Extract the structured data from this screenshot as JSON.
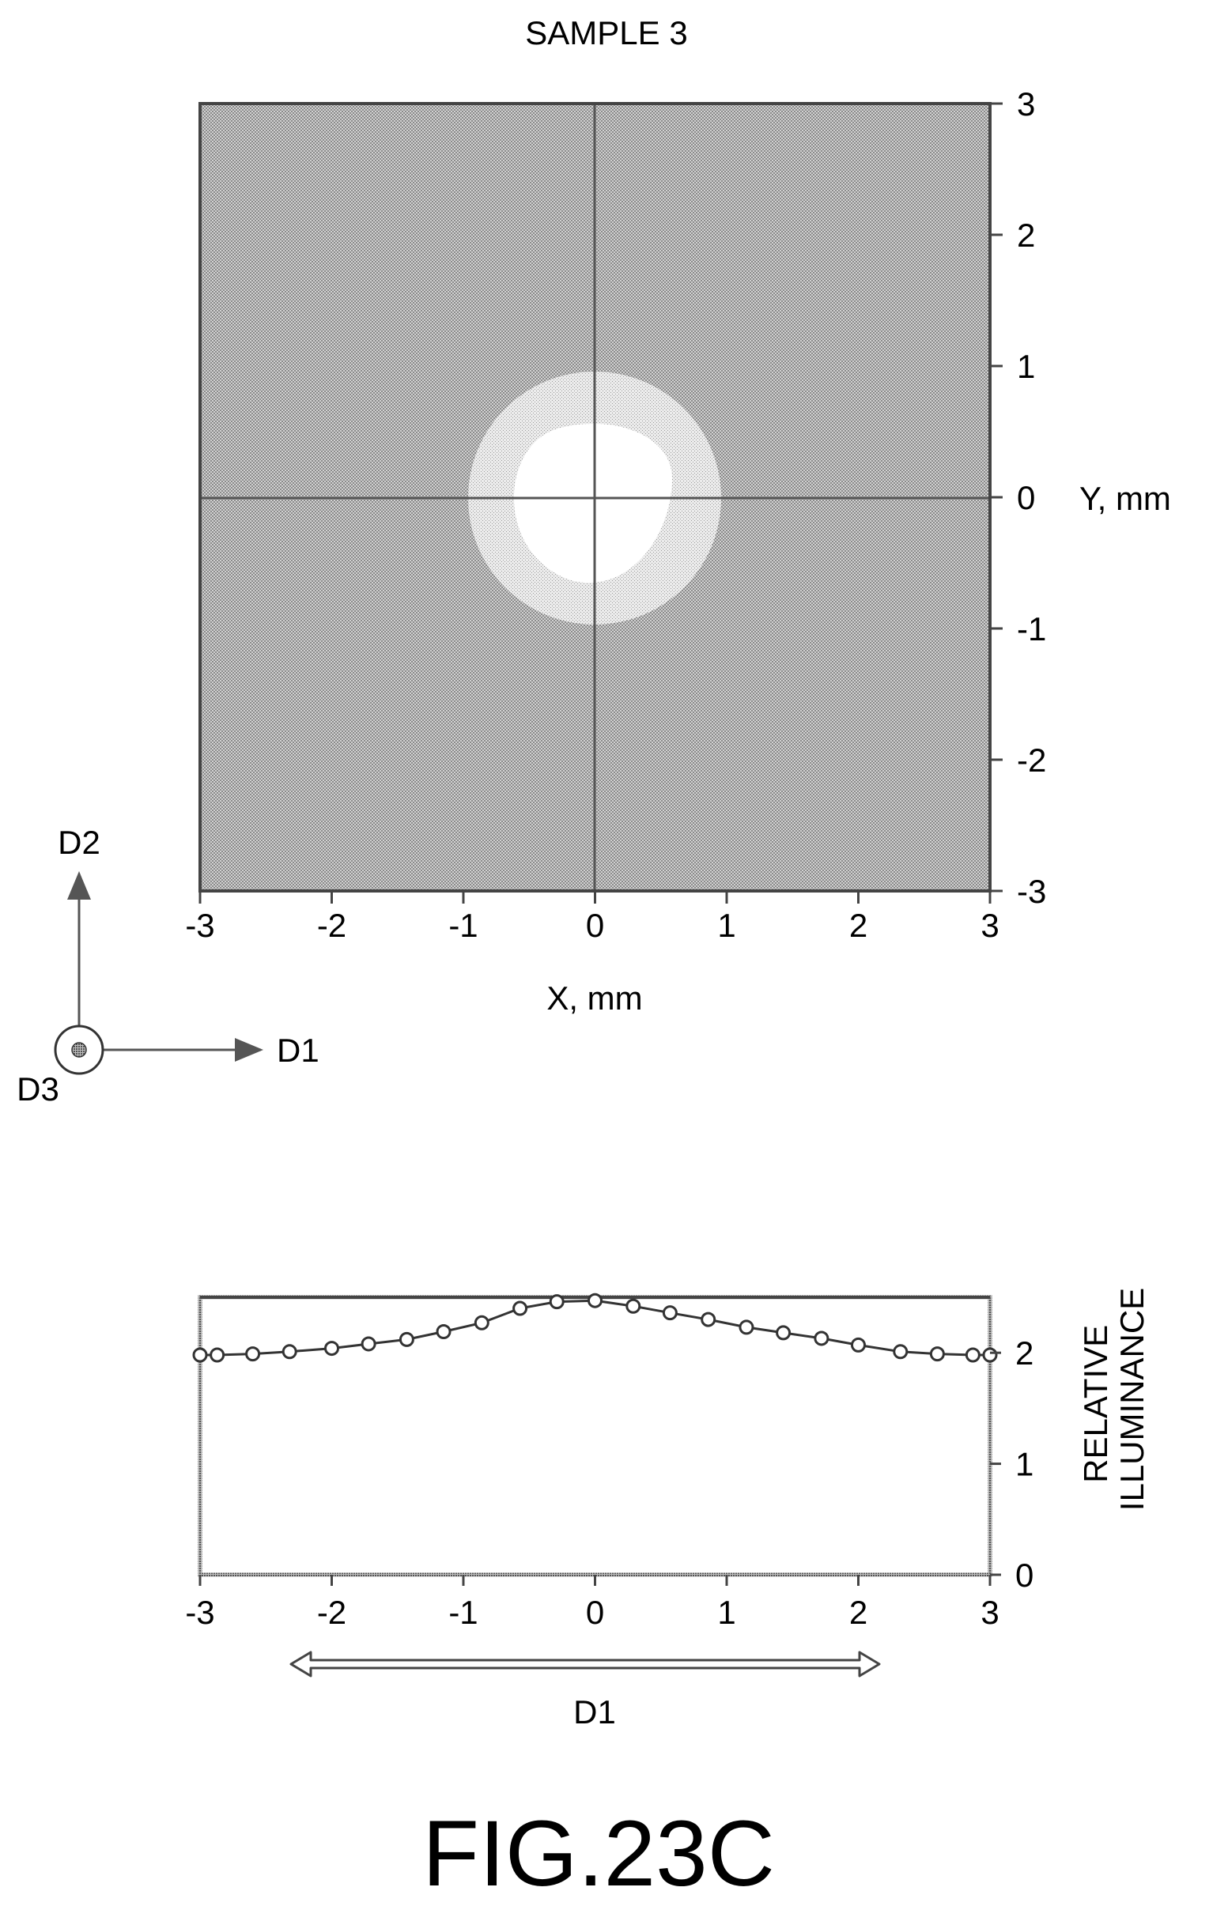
{
  "figure_label": "FIG.23C",
  "direction_labels": {
    "d1": "D1",
    "d2": "D2",
    "d3": "D3",
    "profile_arrow": "D1"
  },
  "colors": {
    "map_fill": "#b9b9b9",
    "bright_spot": "#ffffff",
    "frame": "#444444",
    "line": "#333333"
  },
  "chart_data": [
    {
      "type": "heatmap",
      "title": "SAMPLE 3",
      "xlabel": "X, mm",
      "ylabel": "Y, mm",
      "xlim": [
        -3,
        3
      ],
      "ylim": [
        -3,
        3
      ],
      "xticks": [
        "-3",
        "-2",
        "-1",
        "0",
        "1",
        "2",
        "3"
      ],
      "yticks": [
        "3",
        "2",
        "1",
        "0",
        "-1",
        "-2",
        "-3"
      ],
      "crosshair": {
        "x": 0,
        "y": 0
      },
      "regions": [
        {
          "level": "high",
          "shape": "irregular-circle",
          "center": [
            0,
            0
          ],
          "radius_mm": 0.6
        },
        {
          "level": "medium",
          "shape": "halo",
          "center": [
            0,
            0
          ],
          "radius_mm": 0.95
        }
      ]
    },
    {
      "type": "line",
      "xlabel": "",
      "ylabel": "RELATIVE ILLUMINANCE",
      "xlim": [
        -3,
        3
      ],
      "ylim": [
        0,
        2.5
      ],
      "xticks": [
        "-3",
        "-2",
        "-1",
        "0",
        "1",
        "2",
        "3"
      ],
      "yticks": [
        "2",
        "1",
        "0"
      ],
      "marker": "circle-open",
      "series": [
        {
          "x": [
            -3.0,
            -2.87,
            -2.6,
            -2.32,
            -2.0,
            -1.72,
            -1.43,
            -1.15,
            -0.86,
            -0.57,
            -0.29,
            0.0,
            0.29,
            0.57,
            0.86,
            1.15,
            1.43,
            1.72,
            2.0,
            2.32,
            2.6,
            2.87,
            3.0
          ],
          "y": [
            1.98,
            1.98,
            1.99,
            2.01,
            2.04,
            2.08,
            2.12,
            2.19,
            2.27,
            2.4,
            2.46,
            2.47,
            2.42,
            2.36,
            2.3,
            2.23,
            2.18,
            2.13,
            2.07,
            2.01,
            1.99,
            1.98,
            1.98
          ]
        }
      ]
    }
  ]
}
